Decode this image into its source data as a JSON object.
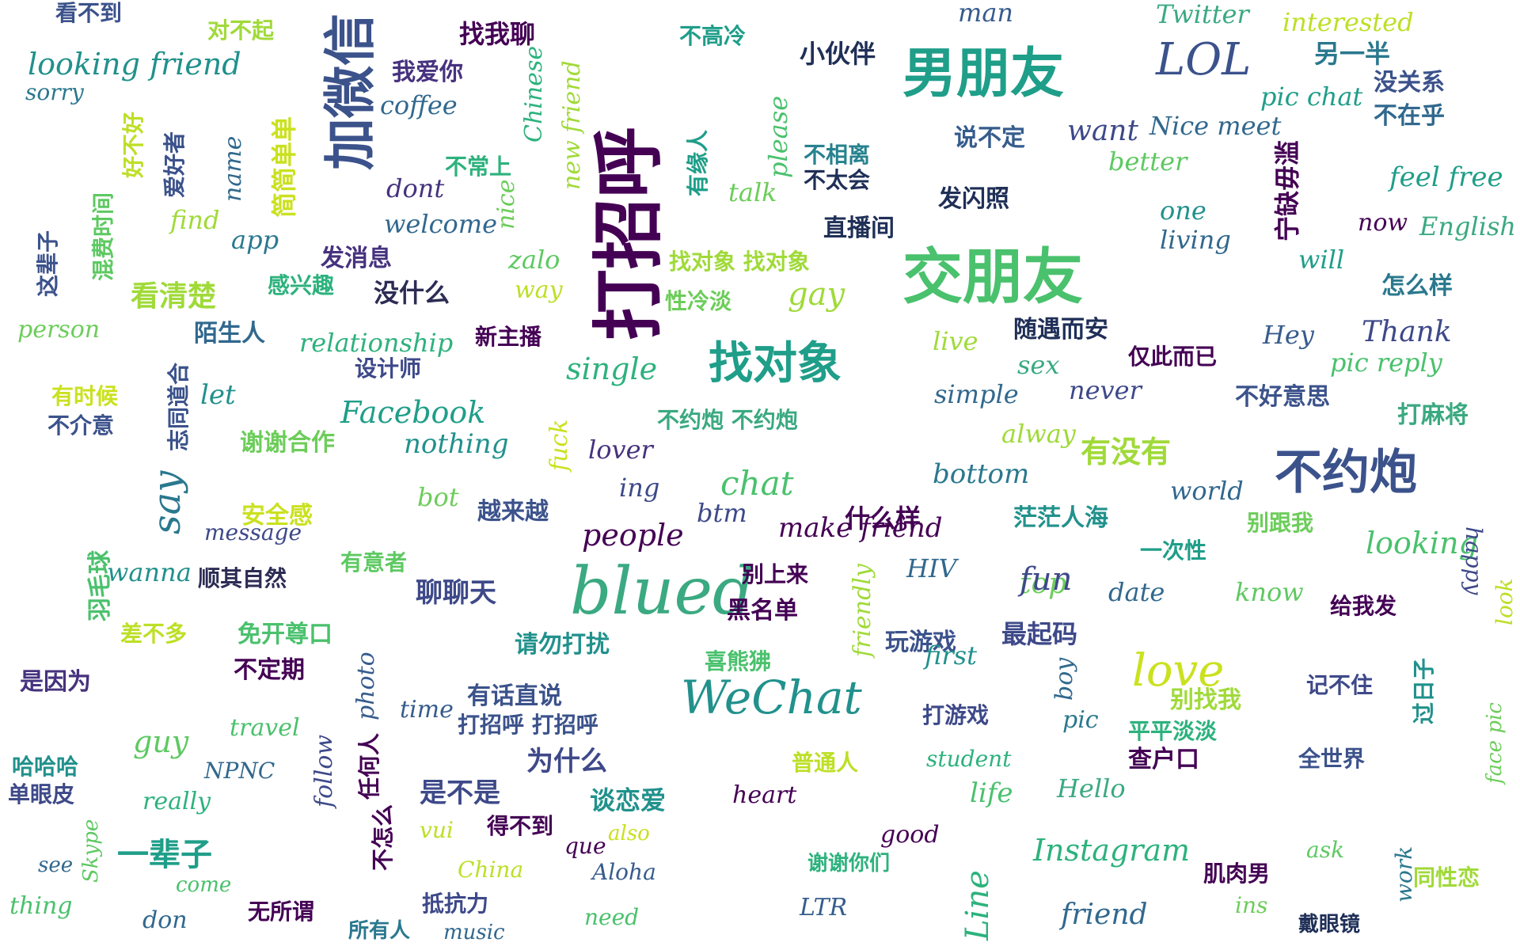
{
  "cloud": {
    "words": [
      {
        "text": "看不到",
        "color": "#3b528b"
      },
      {
        "text": "对不起",
        "color": "#a0da39"
      },
      {
        "text": "looking friend",
        "color": "#21918c"
      },
      {
        "text": "sorry",
        "color": "#2a788e"
      },
      {
        "text": "加微信",
        "color": "#3b528b"
      },
      {
        "text": "找我聊",
        "color": "#440154"
      },
      {
        "text": "我爱你",
        "color": "#46327e"
      },
      {
        "text": "coffee",
        "color": "#31688e"
      },
      {
        "text": "Chinese",
        "color": "#2db27d"
      },
      {
        "text": "new friend",
        "color": "#a0da39"
      },
      {
        "text": "打招呼",
        "color": "#440154"
      },
      {
        "text": "不高冷",
        "color": "#1f9e89"
      },
      {
        "text": "小伙伴",
        "color": "#1f2f57"
      },
      {
        "text": "男朋友",
        "color": "#1f9e89"
      },
      {
        "text": "man",
        "color": "#365c8d"
      },
      {
        "text": "LOL",
        "color": "#3b528b"
      },
      {
        "text": "Twitter",
        "color": "#3ba982"
      },
      {
        "text": "interested",
        "color": "#bddf26"
      },
      {
        "text": "另一半",
        "color": "#2a788e"
      },
      {
        "text": "pic chat",
        "color": "#1f9e89"
      },
      {
        "text": "没关系",
        "color": "#3b528b"
      },
      {
        "text": "不在乎",
        "color": "#31688e"
      },
      {
        "text": "好不好",
        "color": "#bddf26"
      },
      {
        "text": "爱好者",
        "color": "#3b528b"
      },
      {
        "text": "简简单单",
        "color": "#cae11f"
      },
      {
        "text": "name",
        "color": "#31688e"
      },
      {
        "text": "有缘人",
        "color": "#1f9e89"
      },
      {
        "text": "please",
        "color": "#4ac16d"
      },
      {
        "text": "want",
        "color": "#3e4989"
      },
      {
        "text": "Nice meet",
        "color": "#31688e"
      },
      {
        "text": "说不定",
        "color": "#365c8d"
      },
      {
        "text": "不相离",
        "color": "#26828e"
      },
      {
        "text": "不太会",
        "color": "#1f2f57"
      },
      {
        "text": "better",
        "color": "#5ec962"
      },
      {
        "text": "feel free",
        "color": "#1f9e89"
      },
      {
        "text": "宁缺毋滥",
        "color": "#440154"
      },
      {
        "text": "不常上",
        "color": "#2db27d"
      },
      {
        "text": "dont",
        "color": "#46327e"
      },
      {
        "text": "nice",
        "color": "#6ccd5a"
      },
      {
        "text": "talk",
        "color": "#6ccd5a"
      },
      {
        "text": "发闪照",
        "color": "#1f2f57"
      },
      {
        "text": "one",
        "color": "#21918c"
      },
      {
        "text": "living",
        "color": "#31688e"
      },
      {
        "text": "now",
        "color": "#440154"
      },
      {
        "text": "English",
        "color": "#3ba982"
      },
      {
        "text": "混费时间",
        "color": "#5ec962"
      },
      {
        "text": "find",
        "color": "#a0da39"
      },
      {
        "text": "app",
        "color": "#2a788e"
      },
      {
        "text": "welcome",
        "color": "#31688e"
      },
      {
        "text": "直播间",
        "color": "#1f2f57"
      },
      {
        "text": "交朋友",
        "color": "#4ac16d"
      },
      {
        "text": "will",
        "color": "#1f9e89"
      },
      {
        "text": "这辈子",
        "color": "#3b528b"
      },
      {
        "text": "发消息",
        "color": "#46327e"
      },
      {
        "text": "zalo",
        "color": "#5ec962"
      },
      {
        "text": "找对象 找对象",
        "color": "#a0da39"
      },
      {
        "text": "怎么样",
        "color": "#2a788e"
      },
      {
        "text": "感兴趣",
        "color": "#2db27d"
      },
      {
        "text": "没什么",
        "color": "#2c2c54"
      },
      {
        "text": "way",
        "color": "#bddf26"
      },
      {
        "text": "性冷淡",
        "color": "#6ccd5a"
      },
      {
        "text": "gay",
        "color": "#a0da39"
      },
      {
        "text": "看清楚",
        "color": "#a0da39"
      },
      {
        "text": "person",
        "color": "#6ccd5a"
      },
      {
        "text": "陌生人",
        "color": "#31688e"
      },
      {
        "text": "relationship",
        "color": "#2db27d"
      },
      {
        "text": "新主播",
        "color": "#440154"
      },
      {
        "text": "live",
        "color": "#a0da39"
      },
      {
        "text": "随遇而安",
        "color": "#1f2f57"
      },
      {
        "text": "Hey",
        "color": "#365c8d"
      },
      {
        "text": "Thank",
        "color": "#3e4989"
      },
      {
        "text": "志同道合",
        "color": "#3b528b"
      },
      {
        "text": "设计师",
        "color": "#3e4989"
      },
      {
        "text": "single",
        "color": "#2db27d"
      },
      {
        "text": "找对象",
        "color": "#1f9e89"
      },
      {
        "text": "sex",
        "color": "#3ba982"
      },
      {
        "text": "仅此而已",
        "color": "#440154"
      },
      {
        "text": "pic reply",
        "color": "#4ac16d"
      },
      {
        "text": "有时候",
        "color": "#cae11f"
      },
      {
        "text": "let",
        "color": "#21918c"
      },
      {
        "text": "Facebook",
        "color": "#1f9e89"
      },
      {
        "text": "simple",
        "color": "#31688e"
      },
      {
        "text": "never",
        "color": "#3e4989"
      },
      {
        "text": "不好意思",
        "color": "#3b528b"
      },
      {
        "text": "不介意",
        "color": "#3b528b"
      },
      {
        "text": "谢谢合作",
        "color": "#6ccd5a"
      },
      {
        "text": "nothing",
        "color": "#21918c"
      },
      {
        "text": "不约炮 不约炮",
        "color": "#3ba982"
      },
      {
        "text": "alway",
        "color": "#a0da39"
      },
      {
        "text": "打麻将",
        "color": "#3ba982"
      },
      {
        "text": "say",
        "color": "#2a788e"
      },
      {
        "text": "fuck",
        "color": "#cae11f"
      },
      {
        "text": "lover",
        "color": "#46327e"
      },
      {
        "text": "有没有",
        "color": "#a0da39"
      },
      {
        "text": "不约炮",
        "color": "#3b528b"
      },
      {
        "text": "bot",
        "color": "#6ccd5a"
      },
      {
        "text": "ing",
        "color": "#3e4989"
      },
      {
        "text": "chat",
        "color": "#4ac16d"
      },
      {
        "text": "bottom",
        "color": "#2a788e"
      },
      {
        "text": "world",
        "color": "#31688e"
      },
      {
        "text": "安全感",
        "color": "#cae11f"
      },
      {
        "text": "越来越",
        "color": "#3b528b"
      },
      {
        "text": "什么样",
        "color": "#440154"
      },
      {
        "text": "茫茫人海",
        "color": "#21918c"
      },
      {
        "text": "message",
        "color": "#3e4989"
      },
      {
        "text": "people",
        "color": "#440154"
      },
      {
        "text": "btm",
        "color": "#3e4989"
      },
      {
        "text": "make friend",
        "color": "#440154"
      },
      {
        "text": "别跟我",
        "color": "#6ccd5a"
      },
      {
        "text": "羽毛球",
        "color": "#4ac16d"
      },
      {
        "text": "有意者",
        "color": "#5ec962"
      },
      {
        "text": "一次性",
        "color": "#1f9e89"
      },
      {
        "text": "looking",
        "color": "#4ac16d"
      },
      {
        "text": "happy",
        "color": "#3e4989"
      },
      {
        "text": "wanna",
        "color": "#21918c"
      },
      {
        "text": "顺其自然",
        "color": "#2c2c54"
      },
      {
        "text": "聊聊天",
        "color": "#3e4989"
      },
      {
        "text": "blued",
        "color": "#3ba982"
      },
      {
        "text": "别上来",
        "color": "#440154"
      },
      {
        "text": "HIV",
        "color": "#31688e"
      },
      {
        "text": "top",
        "color": "#6ccd5a"
      },
      {
        "text": "fun",
        "color": "#3e4989"
      },
      {
        "text": "date",
        "color": "#31688e"
      },
      {
        "text": "know",
        "color": "#5ec962"
      },
      {
        "text": "给我发",
        "color": "#440154"
      },
      {
        "text": "差不多",
        "color": "#bddf26"
      },
      {
        "text": "免开尊口",
        "color": "#4ac16d"
      },
      {
        "text": "黑名单",
        "color": "#440154"
      },
      {
        "text": "friendly",
        "color": "#a0da39"
      },
      {
        "text": "玩游戏",
        "color": "#3b528b"
      },
      {
        "text": "最起码",
        "color": "#3e4989"
      },
      {
        "text": "look",
        "color": "#bddf26"
      },
      {
        "text": "是因为",
        "color": "#46327e"
      },
      {
        "text": "不定期",
        "color": "#440154"
      },
      {
        "text": "time",
        "color": "#365c8d"
      },
      {
        "text": "请勿打扰",
        "color": "#21918c"
      },
      {
        "text": "喜熊狒",
        "color": "#4ac16d"
      },
      {
        "text": "first",
        "color": "#21918c"
      },
      {
        "text": "love",
        "color": "#cae11f"
      },
      {
        "text": "记不住",
        "color": "#3e4989"
      },
      {
        "text": "photo",
        "color": "#365c8d"
      },
      {
        "text": "有话直说",
        "color": "#3b528b"
      },
      {
        "text": "boy",
        "color": "#31688e"
      },
      {
        "text": "别找我",
        "color": "#a0da39"
      },
      {
        "text": "travel",
        "color": "#4ac16d"
      },
      {
        "text": "打招呼 打招呼",
        "color": "#3b528b"
      },
      {
        "text": "WeChat",
        "color": "#21918c"
      },
      {
        "text": "打游戏",
        "color": "#3e4989"
      },
      {
        "text": "pic",
        "color": "#2a788e"
      },
      {
        "text": "平平淡淡",
        "color": "#2db27d"
      },
      {
        "text": "过日子",
        "color": "#21918c"
      },
      {
        "text": "face pic",
        "color": "#6ccd5a"
      },
      {
        "text": "guy",
        "color": "#5ec962"
      },
      {
        "text": "哈哈哈",
        "color": "#21918c"
      },
      {
        "text": "单眼皮",
        "color": "#3e4989"
      },
      {
        "text": "NPNC",
        "color": "#31688e"
      },
      {
        "text": "任何人",
        "color": "#440154"
      },
      {
        "text": "为什么",
        "color": "#3e4989"
      },
      {
        "text": "普通人",
        "color": "#bddf26"
      },
      {
        "text": "student",
        "color": "#2db27d"
      },
      {
        "text": "查户口",
        "color": "#440154"
      },
      {
        "text": "全世界",
        "color": "#3b528b"
      },
      {
        "text": "really",
        "color": "#2db27d"
      },
      {
        "text": "follow",
        "color": "#3e4989"
      },
      {
        "text": "是不是",
        "color": "#3e4989"
      },
      {
        "text": "heart",
        "color": "#440154"
      },
      {
        "text": "life",
        "color": "#4ac16d"
      },
      {
        "text": "Hello",
        "color": "#3ba982"
      },
      {
        "text": "谈恋爱",
        "color": "#21918c"
      },
      {
        "text": "得不到",
        "color": "#440154"
      },
      {
        "text": "不怎么",
        "color": "#440154"
      },
      {
        "text": "vui",
        "color": "#bddf26"
      },
      {
        "text": "also",
        "color": "#cae11f"
      },
      {
        "text": "good",
        "color": "#440154"
      },
      {
        "text": "一辈子",
        "color": "#1f9e89"
      },
      {
        "text": "Instagram",
        "color": "#2db27d"
      },
      {
        "text": "ask",
        "color": "#5ec962"
      },
      {
        "text": "work",
        "color": "#2a788e"
      },
      {
        "text": "que",
        "color": "#440154"
      },
      {
        "text": "see",
        "color": "#31688e"
      },
      {
        "text": "Skype",
        "color": "#5ec962"
      },
      {
        "text": "China",
        "color": "#bddf26"
      },
      {
        "text": "Aloha",
        "color": "#365c8d"
      },
      {
        "text": "谢谢你们",
        "color": "#2db27d"
      },
      {
        "text": "肌肉男",
        "color": "#440154"
      },
      {
        "text": "同性恋",
        "color": "#a0da39"
      },
      {
        "text": "come",
        "color": "#4ac16d"
      },
      {
        "text": "thing",
        "color": "#4ac16d"
      },
      {
        "text": "don",
        "color": "#31688e"
      },
      {
        "text": "无所谓",
        "color": "#440154"
      },
      {
        "text": "抵抗力",
        "color": "#3e4989"
      },
      {
        "text": "LTR",
        "color": "#365c8d"
      },
      {
        "text": "Line",
        "color": "#2db27d"
      },
      {
        "text": "friend",
        "color": "#31688e"
      },
      {
        "text": "ins",
        "color": "#6ccd5a"
      },
      {
        "text": "戴眼镜",
        "color": "#1f2f57"
      },
      {
        "text": "所有人",
        "color": "#2a788e"
      },
      {
        "text": "music",
        "color": "#31688e"
      },
      {
        "text": "need",
        "color": "#4ac16d"
      }
    ]
  }
}
